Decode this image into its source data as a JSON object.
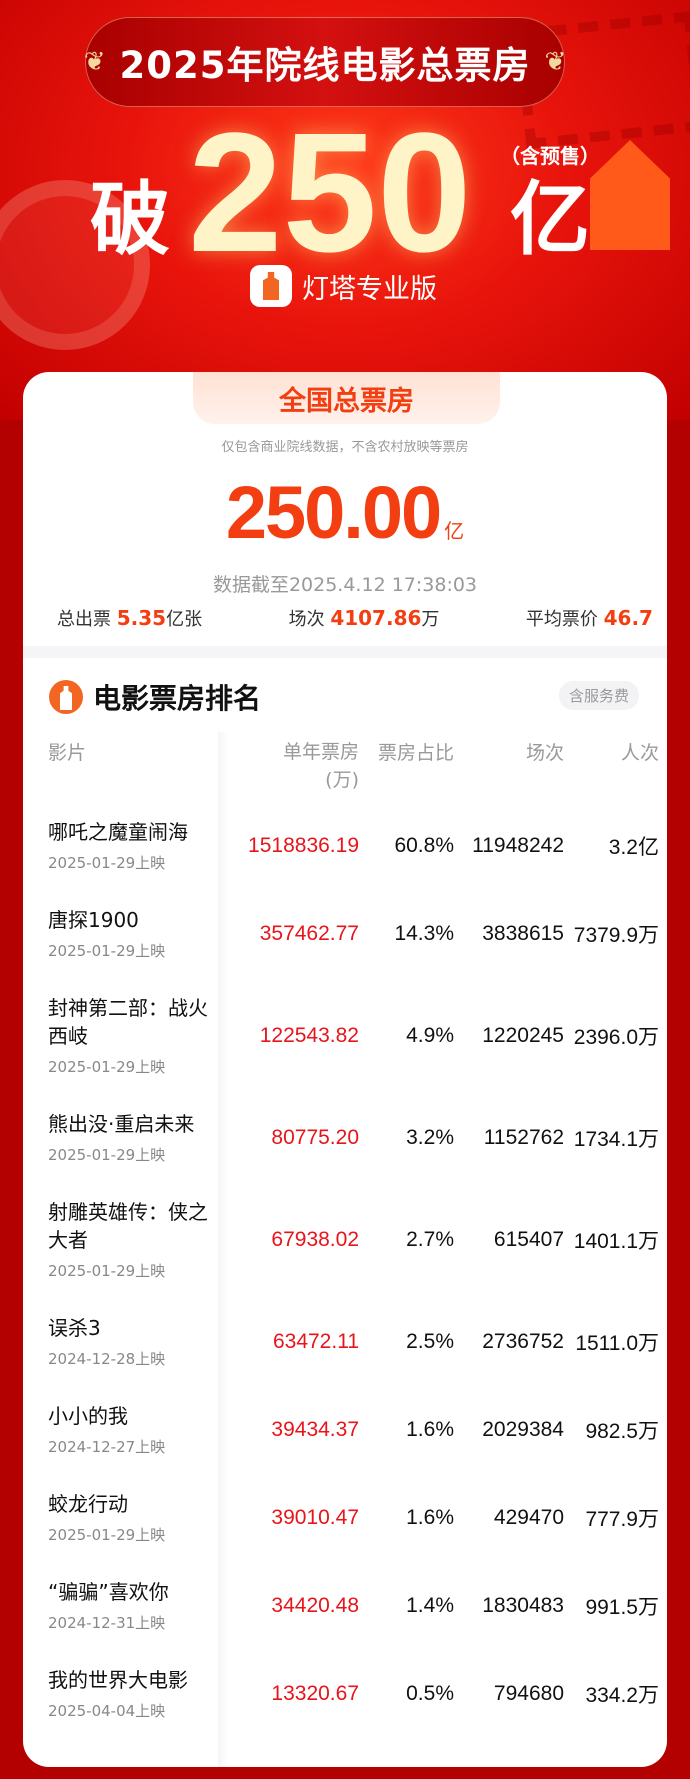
{
  "banner": {
    "title": "2025年院线电影总票房",
    "prefix": "破",
    "amount": "250",
    "unit": "亿",
    "presale_note": "（含预售）",
    "brand": "灯塔专业版"
  },
  "summary": {
    "tab_label": "全国总票房",
    "note": "仅包含商业院线数据，不含农村放映等票房",
    "total": "250.00",
    "total_unit": "亿",
    "as_of": "数据截至2025.4.12 17:38:03",
    "tickets_label": "总出票",
    "tickets_value": "5.35",
    "tickets_unit": "亿张",
    "sessions_label": "场次",
    "sessions_value": "4107.86",
    "sessions_unit": "万",
    "avg_price_label": "平均票价",
    "avg_price_value": "46.7"
  },
  "ranking": {
    "title": "电影票房排名",
    "badge": "含服务费",
    "columns": {
      "name": "影片",
      "box": "单年票房",
      "box_unit": "(万)",
      "share": "票房占比",
      "sessions": "场次",
      "people": "人次"
    },
    "rows": [
      {
        "name": "哪吒之魔童闹海",
        "date": "2025-01-29上映",
        "box": "1518836.19",
        "share": "60.8%",
        "sessions": "11948242",
        "people": "3.2亿"
      },
      {
        "name": "唐探1900",
        "date": "2025-01-29上映",
        "box": "357462.77",
        "share": "14.3%",
        "sessions": "3838615",
        "people": "7379.9万"
      },
      {
        "name": "封神第二部：战火西岐",
        "date": "2025-01-29上映",
        "box": "122543.82",
        "share": "4.9%",
        "sessions": "1220245",
        "people": "2396.0万"
      },
      {
        "name": "熊出没·重启未来",
        "date": "2025-01-29上映",
        "box": "80775.20",
        "share": "3.2%",
        "sessions": "1152762",
        "people": "1734.1万"
      },
      {
        "name": "射雕英雄传：侠之大者",
        "date": "2025-01-29上映",
        "box": "67938.02",
        "share": "2.7%",
        "sessions": "615407",
        "people": "1401.1万"
      },
      {
        "name": "误杀3",
        "date": "2024-12-28上映",
        "box": "63472.11",
        "share": "2.5%",
        "sessions": "2736752",
        "people": "1511.0万"
      },
      {
        "name": "小小的我",
        "date": "2024-12-27上映",
        "box": "39434.37",
        "share": "1.6%",
        "sessions": "2029384",
        "people": "982.5万"
      },
      {
        "name": "蛟龙行动",
        "date": "2025-01-29上映",
        "box": "39010.47",
        "share": "1.6%",
        "sessions": "429470",
        "people": "777.9万"
      },
      {
        "name": "“骗骗”喜欢你",
        "date": "2024-12-31上映",
        "box": "34420.48",
        "share": "1.4%",
        "sessions": "1830483",
        "people": "991.5万"
      },
      {
        "name": "我的世界大电影",
        "date": "2025-04-04上映",
        "box": "13320.67",
        "share": "0.5%",
        "sessions": "794680",
        "people": "334.2万"
      }
    ]
  },
  "colors": {
    "accent": "#f33e12",
    "box_value": "#e8141a",
    "background": "#b30000"
  }
}
